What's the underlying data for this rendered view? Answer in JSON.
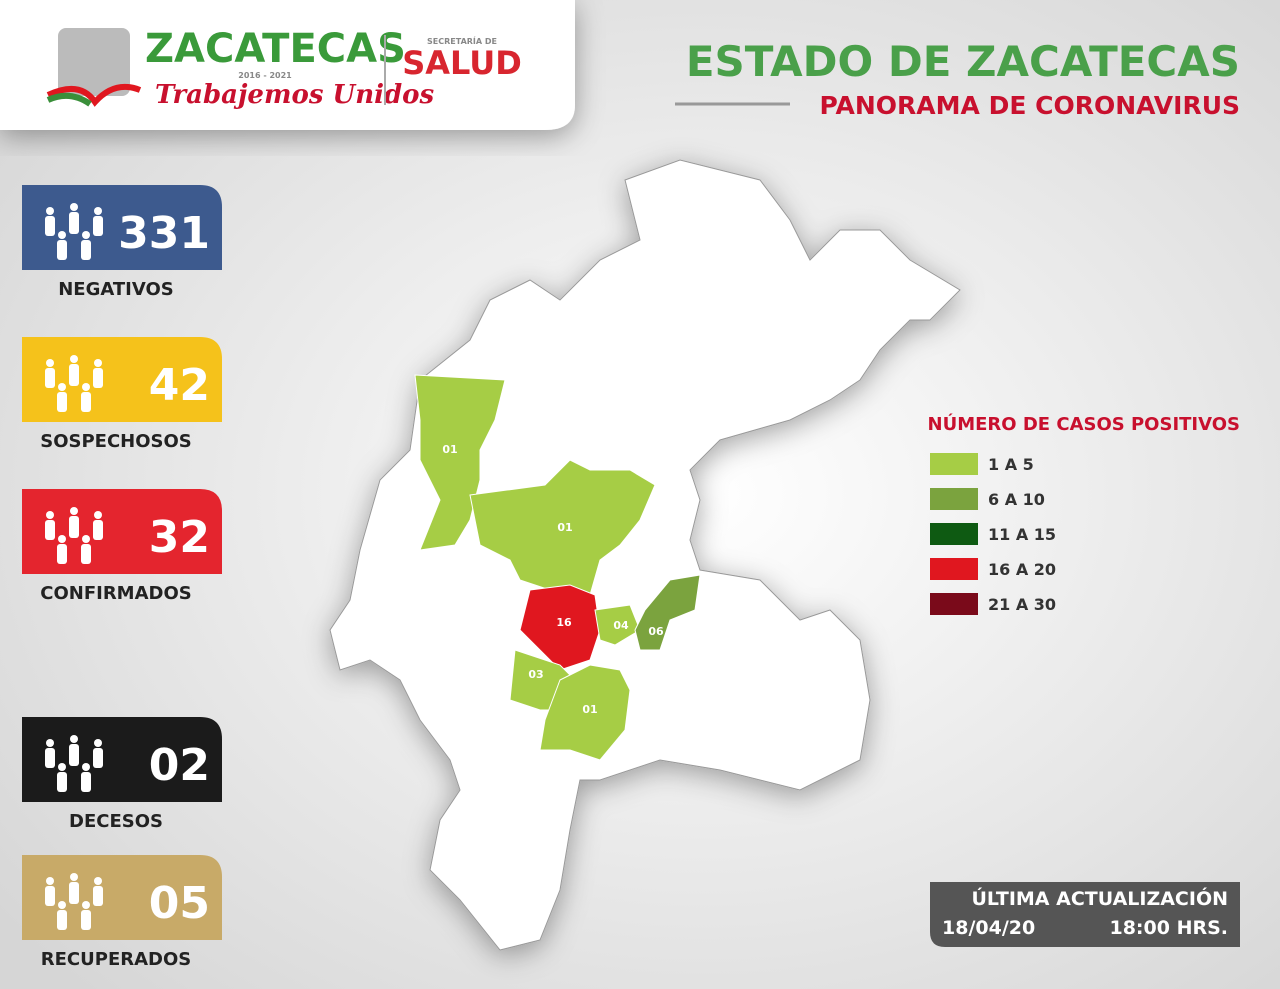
{
  "header": {
    "brand": "ZACATECAS",
    "years": "2016 - 2021",
    "slogan": "Trabajemos Unidos",
    "secretaria": "SECRETARÍA DE",
    "salud": "SALUD",
    "title": "ESTADO DE ZACATECAS",
    "subtitle": "PANORAMA DE CORONAVIRUS"
  },
  "stats": [
    {
      "value": "331",
      "label": "NEGATIVOS",
      "color": "#3d5a8e"
    },
    {
      "value": "42",
      "label": "SOSPECHOSOS",
      "color": "#f5c21b"
    },
    {
      "value": "32",
      "label": "CONFIRMADOS",
      "color": "#e4252e"
    },
    {
      "value": "02",
      "label": "DECESOS",
      "color": "#1b1b1b"
    },
    {
      "value": "05",
      "label": "RECUPERADOS",
      "color": "#c8aa68"
    }
  ],
  "legend": {
    "title": "NÚMERO DE CASOS POSITIVOS",
    "items": [
      {
        "label": "1 A 5",
        "color": "#a6cd45"
      },
      {
        "label": "6 A 10",
        "color": "#7ba33e"
      },
      {
        "label": "11 A 15",
        "color": "#0e5a12"
      },
      {
        "label": "16 A 20",
        "color": "#e0171f"
      },
      {
        "label": "21 A 30",
        "color": "#7a0a1a"
      }
    ]
  },
  "map": {
    "municipalities": [
      {
        "label": "01",
        "color": "#a6cd45"
      },
      {
        "label": "01",
        "color": "#a6cd45"
      },
      {
        "label": "16",
        "color": "#e0171f"
      },
      {
        "label": "04",
        "color": "#a6cd45"
      },
      {
        "label": "06",
        "color": "#7ba33e"
      },
      {
        "label": "03",
        "color": "#a6cd45"
      },
      {
        "label": "01",
        "color": "#a6cd45"
      }
    ]
  },
  "update": {
    "title": "ÚLTIMA ACTUALIZACIÓN",
    "date": "18/04/20",
    "time": "18:00 HRS."
  }
}
